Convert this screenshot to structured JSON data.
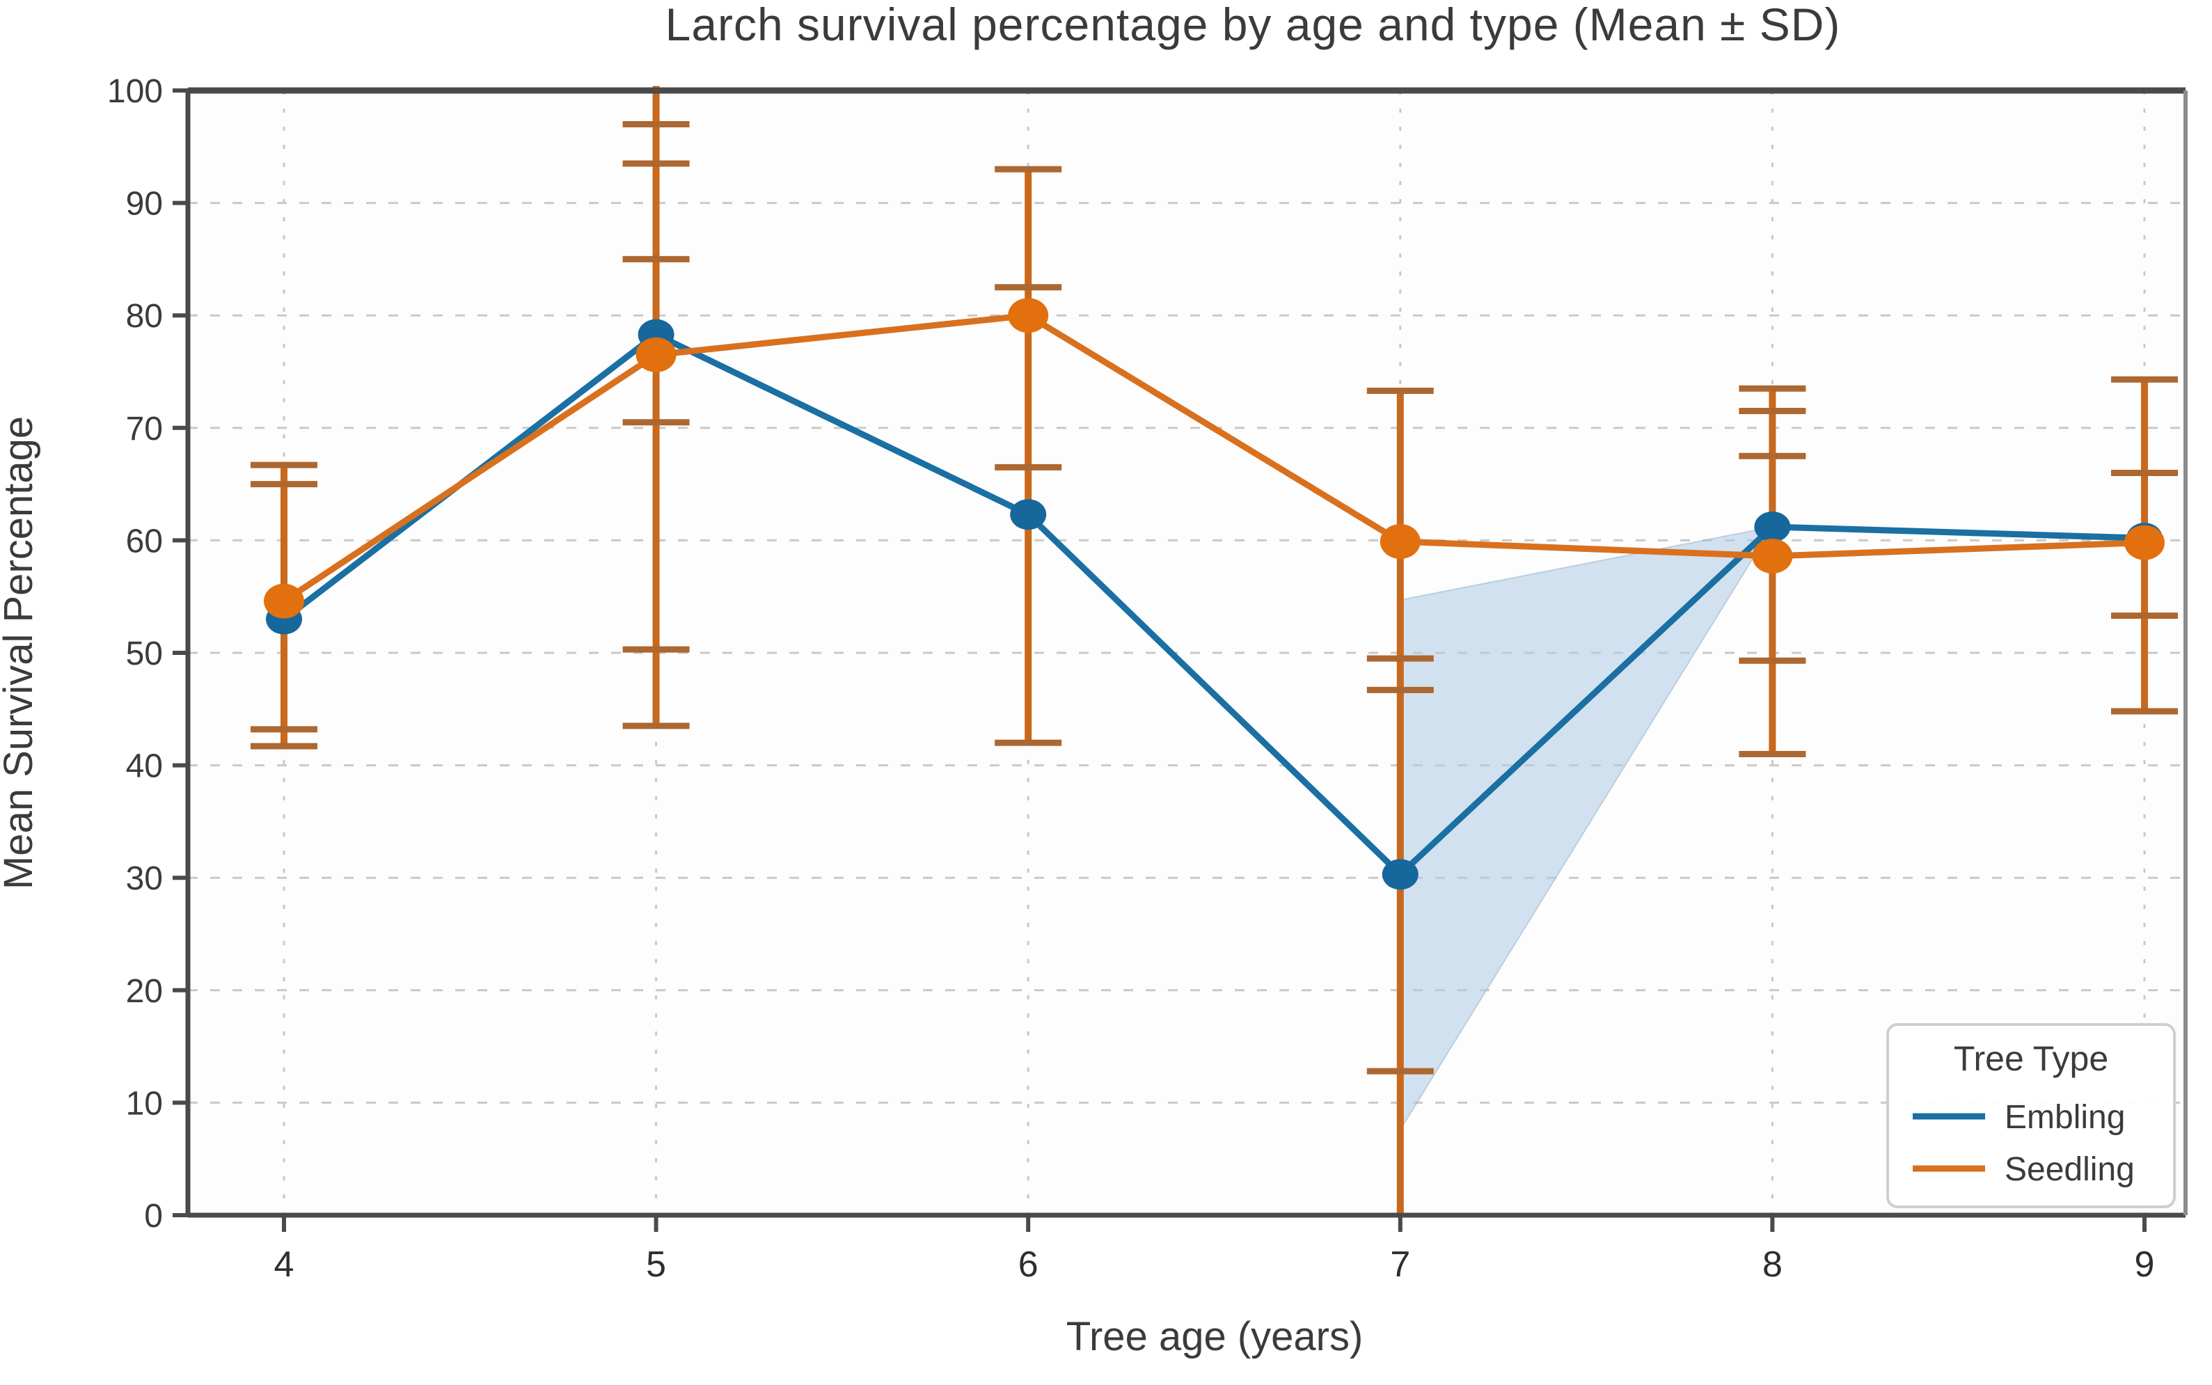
{
  "chart_data": {
    "type": "line",
    "title": "Larch survival percentage by age and type (Mean ± SD)",
    "xlabel": "Tree age (years)",
    "ylabel": "Mean Survival Percentage",
    "x": [
      4,
      5,
      6,
      7,
      8,
      9
    ],
    "xticks": [
      4,
      5,
      6,
      7,
      8,
      9
    ],
    "yticks": [
      0,
      10,
      20,
      30,
      40,
      50,
      60,
      70,
      80,
      90,
      100
    ],
    "xlim": [
      3.74,
      9.11
    ],
    "ylim": [
      0,
      100
    ],
    "grid": "dashed horizontal and vertical gridlines",
    "series": [
      {
        "name": "Embling",
        "color": "#1a6fa3",
        "marker_color": "#15679c",
        "values": [
          53.0,
          78.3,
          62.3,
          30.3,
          61.2,
          60.2
        ]
      },
      {
        "name": "Seedling",
        "color": "#d9701e",
        "marker_color": "#e2700f",
        "values": [
          54.6,
          76.5,
          80.0,
          59.9,
          58.6,
          59.8
        ]
      }
    ],
    "error_bars": [
      {
        "x": 4,
        "low": 41.7,
        "high": 66.7,
        "caps": [
          66.7,
          65.0,
          43.2,
          41.7
        ]
      },
      {
        "x": 5,
        "low": 43.5,
        "high": 100.4,
        "caps": [
          97.0,
          93.5,
          85.0,
          70.5,
          50.3,
          43.5
        ]
      },
      {
        "x": 6,
        "low": 42.0,
        "high": 93.0,
        "caps": [
          93.0,
          82.5,
          66.5,
          42.0
        ]
      },
      {
        "x": 7,
        "low": 0.0,
        "high": 73.3,
        "caps": [
          73.3,
          49.5,
          46.7,
          12.8
        ]
      },
      {
        "x": 8,
        "low": 41.0,
        "high": 73.5,
        "caps": [
          73.5,
          71.5,
          67.5,
          49.3,
          41.0
        ]
      },
      {
        "x": 9,
        "low": 44.8,
        "high": 74.3,
        "caps": [
          74.3,
          66.0,
          53.3,
          44.8
        ]
      }
    ],
    "error_bar_color": "#c8691e",
    "cap_color": "#ad6730",
    "shaded_region": {
      "description": "light blue triangular band between age 7 and age 8 converging on the Embling point at age 8",
      "points_xy": [
        [
          7,
          54.7
        ],
        [
          7,
          7.6
        ],
        [
          8,
          61.2
        ]
      ],
      "fill": "rgba(174,203,227,0.55)"
    },
    "legend": {
      "title": "Tree Type",
      "position": "lower right",
      "entries": [
        "Embling",
        "Seedling"
      ]
    },
    "colors": {
      "plot_background": "#fdfdfd",
      "grid": "#c9c9c9",
      "spine_dark": "#4a4a4a",
      "spine_light": "#8c8c8c",
      "text": "#3b3b3b"
    }
  }
}
